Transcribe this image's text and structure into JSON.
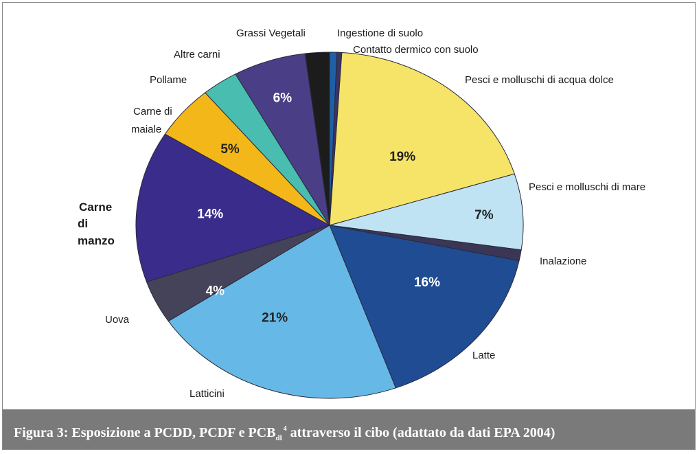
{
  "chart_data": {
    "type": "pie",
    "title": "",
    "slices": [
      {
        "label": "Ingestione di suolo",
        "value": 0.6,
        "value_label": "",
        "color": "#1f5fa6"
      },
      {
        "label": "Contatto dermico con suolo",
        "value": 0.4,
        "value_label": "",
        "color": "#3a3466"
      },
      {
        "label": "Pesci e molluschi di acqua dolce",
        "value": 19,
        "value_label": "19%",
        "color": "#f6e468"
      },
      {
        "label": "Pesci e molluschi di mare",
        "value": 7,
        "value_label": "7%",
        "color": "#bfe3f3"
      },
      {
        "label": "Inalazione",
        "value": 1,
        "value_label": "",
        "color": "#3b3656"
      },
      {
        "label": "Latte",
        "value": 16,
        "value_label": "16%",
        "color": "#1f4c93"
      },
      {
        "label": "Latticini",
        "value": 21,
        "value_label": "21%",
        "color": "#66b9e6"
      },
      {
        "label": "Uova",
        "value": 4,
        "value_label": "4%",
        "color": "#45435a"
      },
      {
        "label": "Carne di manzo",
        "value": 14,
        "value_label": "14%",
        "color": "#3a2c8a"
      },
      {
        "label": "Carne di maiale",
        "value": 5,
        "value_label": "5%",
        "color": "#f4b71a"
      },
      {
        "label": "Pollame",
        "value": 3,
        "value_label": "",
        "color": "#48bdb0"
      },
      {
        "label": "Altre carni",
        "value": 6,
        "value_label": "6%",
        "color": "#4a3f86"
      },
      {
        "label": "Grassi Vegetali",
        "value": 2,
        "value_label": "",
        "color": "#1c1c1c"
      }
    ],
    "outside_labels": [
      {
        "text": "Grassi Vegetali"
      },
      {
        "text": "Ingestione di suolo"
      },
      {
        "text": "Contatto dermico con suolo"
      },
      {
        "text": "Pesci e molluschi di acqua dolce"
      },
      {
        "text": "Pesci e molluschi di mare"
      },
      {
        "text": "Inalazione"
      },
      {
        "text": "Latte"
      },
      {
        "text": "Latticini"
      },
      {
        "text": "Uova"
      },
      {
        "text": "Carne",
        "bold": true
      },
      {
        "text": "di",
        "bold": true
      },
      {
        "text": "manzo",
        "bold": true
      },
      {
        "text": "Pollame"
      },
      {
        "text": "Altre carni"
      },
      {
        "text": "Carne di"
      },
      {
        "text": "maiale"
      }
    ]
  },
  "caption": {
    "prefix": "Figura 3: Esposizione a PCDD, PCDF e PCB",
    "sub": "dl",
    "sup": "4",
    "suffix": " attraverso il cibo (adattato da dati EPA 2004)"
  }
}
